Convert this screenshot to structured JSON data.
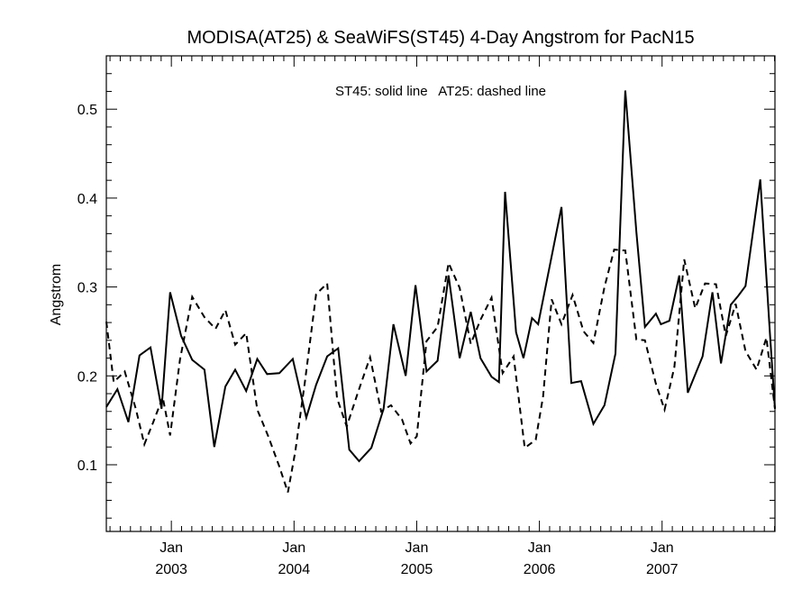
{
  "chart_data": {
    "type": "line",
    "title": "MODISA(AT25) & SeaWiFS(ST45) 4-Day Angstrom for PacN15",
    "annotation": "ST45: solid line   AT25: dashed line",
    "xlabel": "",
    "ylabel": "Angstrom",
    "xlim": [
      2002.47,
      2007.92
    ],
    "ylim": [
      0.025,
      0.56
    ],
    "yticks": [
      {
        "value": 0.1,
        "label": "0.1"
      },
      {
        "value": 0.2,
        "label": "0.2"
      },
      {
        "value": 0.3,
        "label": "0.3"
      },
      {
        "value": 0.4,
        "label": "0.4"
      },
      {
        "value": 0.5,
        "label": "0.5"
      }
    ],
    "xticks": [
      {
        "value": 2003.0,
        "month": "Jan",
        "year": "2003"
      },
      {
        "value": 2004.0,
        "month": "Jan",
        "year": "2004"
      },
      {
        "value": 2005.0,
        "month": "Jan",
        "year": "2005"
      },
      {
        "value": 2006.0,
        "month": "Jan",
        "year": "2006"
      },
      {
        "value": 2007.0,
        "month": "Jan",
        "year": "2007"
      }
    ],
    "grid": false,
    "series": [
      {
        "name": "ST45",
        "style": "solid",
        "color": "#000000",
        "x": [
          2002.47,
          2002.56,
          2002.65,
          2002.74,
          2002.83,
          2002.92,
          2002.99,
          2003.08,
          2003.17,
          2003.27,
          2003.35,
          2003.44,
          2003.52,
          2003.61,
          2003.7,
          2003.78,
          2003.88,
          2003.99,
          2004.1,
          2004.18,
          2004.27,
          2004.36,
          2004.45,
          2004.53,
          2004.63,
          2004.73,
          2004.81,
          2004.91,
          2004.99,
          2005.08,
          2005.17,
          2005.26,
          2005.35,
          2005.44,
          2005.52,
          2005.61,
          2005.67,
          2005.72,
          2005.81,
          2005.87,
          2005.94,
          2005.99,
          2006.18,
          2006.26,
          2006.34,
          2006.44,
          2006.53,
          2006.62,
          2006.7,
          2006.79,
          2006.86,
          2006.95,
          2006.99,
          2007.06,
          2007.14,
          2007.21,
          2007.33,
          2007.41,
          2007.48,
          2007.56,
          2007.62,
          2007.68,
          2007.8,
          2007.88,
          2007.92
        ],
        "y": [
          0.165,
          0.185,
          0.148,
          0.223,
          0.232,
          0.163,
          0.294,
          0.245,
          0.218,
          0.207,
          0.12,
          0.188,
          0.207,
          0.183,
          0.219,
          0.202,
          0.203,
          0.219,
          0.153,
          0.19,
          0.222,
          0.231,
          0.117,
          0.104,
          0.119,
          0.163,
          0.258,
          0.2,
          0.302,
          0.205,
          0.217,
          0.313,
          0.22,
          0.272,
          0.22,
          0.199,
          0.193,
          0.407,
          0.249,
          0.22,
          0.265,
          0.258,
          0.39,
          0.192,
          0.194,
          0.146,
          0.167,
          0.225,
          0.521,
          0.362,
          0.255,
          0.27,
          0.258,
          0.262,
          0.313,
          0.181,
          0.222,
          0.294,
          0.214,
          0.28,
          0.29,
          0.301,
          0.421,
          0.245,
          0.163
        ]
      },
      {
        "name": "AT25",
        "style": "dashed",
        "color": "#000000",
        "x": [
          2002.47,
          2002.53,
          2002.62,
          2002.71,
          2002.78,
          2002.85,
          2002.93,
          2002.99,
          2003.07,
          2003.17,
          2003.27,
          2003.36,
          2003.44,
          2003.52,
          2003.61,
          2003.7,
          2003.79,
          2003.88,
          2003.95,
          2004.01,
          2004.09,
          2004.18,
          2004.27,
          2004.35,
          2004.43,
          2004.52,
          2004.62,
          2004.71,
          2004.79,
          2004.88,
          2004.95,
          2005.0,
          2005.08,
          2005.17,
          2005.26,
          2005.35,
          2005.44,
          2005.52,
          2005.61,
          2005.7,
          2005.79,
          2005.88,
          2005.97,
          2006.03,
          2006.1,
          2006.18,
          2006.27,
          2006.36,
          2006.44,
          2006.53,
          2006.61,
          2006.7,
          2006.79,
          2006.86,
          2006.95,
          2007.02,
          2007.1,
          2007.18,
          2007.27,
          2007.35,
          2007.44,
          2007.52,
          2007.6,
          2007.68,
          2007.77,
          2007.85,
          2007.92
        ],
        "y": [
          0.261,
          0.193,
          0.205,
          0.163,
          0.123,
          0.147,
          0.176,
          0.133,
          0.218,
          0.289,
          0.266,
          0.253,
          0.274,
          0.235,
          0.248,
          0.162,
          0.132,
          0.098,
          0.069,
          0.115,
          0.195,
          0.292,
          0.304,
          0.175,
          0.143,
          0.181,
          0.221,
          0.16,
          0.167,
          0.151,
          0.124,
          0.132,
          0.239,
          0.255,
          0.327,
          0.299,
          0.236,
          0.263,
          0.288,
          0.203,
          0.222,
          0.119,
          0.128,
          0.177,
          0.286,
          0.258,
          0.291,
          0.25,
          0.237,
          0.3,
          0.342,
          0.341,
          0.241,
          0.24,
          0.191,
          0.162,
          0.21,
          0.331,
          0.276,
          0.304,
          0.303,
          0.245,
          0.281,
          0.228,
          0.207,
          0.243,
          0.163
        ]
      }
    ]
  }
}
